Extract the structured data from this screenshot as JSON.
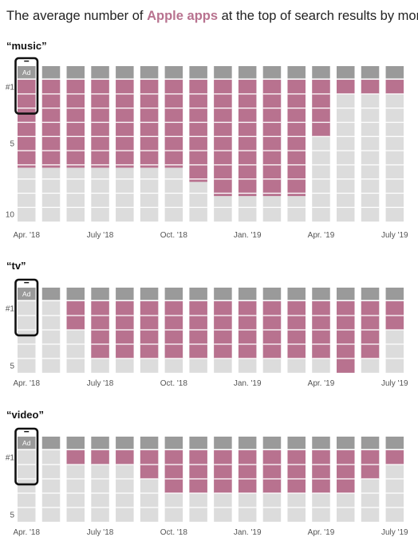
{
  "header": {
    "title_before": "The average number of ",
    "title_highlight": "Apple apps",
    "title_after": " at the top of search results by month"
  },
  "legend": {
    "ad_label": "Ad"
  },
  "colors": {
    "apple": "#b8728f",
    "ad": "#9a9a9a",
    "other": "#dcdcdc",
    "phone": "#111111",
    "highlight_text": "#b8728f"
  },
  "chart_data": [
    {
      "type": "bar",
      "title": "“music”",
      "months": [
        "2018-04",
        "2018-05",
        "2018-06",
        "2018-07",
        "2018-08",
        "2018-09",
        "2018-10",
        "2018-11",
        "2018-12",
        "2019-01",
        "2019-02",
        "2019-03",
        "2019-04",
        "2019-05",
        "2019-06",
        "2019-07"
      ],
      "x_tick_labels": [
        {
          "month_index": 0,
          "label": "Apr. '18"
        },
        {
          "month_index": 3,
          "label": "July '18"
        },
        {
          "month_index": 6,
          "label": "Oct. '18"
        },
        {
          "month_index": 9,
          "label": "Jan. '19"
        },
        {
          "month_index": 12,
          "label": "Apr. '19"
        },
        {
          "month_index": 15,
          "label": "July '19"
        }
      ],
      "y_ticks": [
        {
          "rank": 1,
          "label": "#1"
        },
        {
          "rank": 5,
          "label": "5"
        },
        {
          "rank": 10,
          "label": "10"
        }
      ],
      "slots_shown": 10,
      "ad_slot": true,
      "apple_app_counts": [
        6.2,
        6.2,
        6.2,
        6.2,
        6.2,
        6.2,
        6.2,
        7.2,
        8.2,
        8.2,
        8.2,
        8.2,
        4.0,
        1.0,
        1.0,
        1.0
      ]
    },
    {
      "type": "bar",
      "title": "“tv”",
      "months": [
        "2018-04",
        "2018-05",
        "2018-06",
        "2018-07",
        "2018-08",
        "2018-09",
        "2018-10",
        "2018-11",
        "2018-12",
        "2019-01",
        "2019-02",
        "2019-03",
        "2019-04",
        "2019-05",
        "2019-06",
        "2019-07"
      ],
      "x_tick_labels": [
        {
          "month_index": 0,
          "label": "Apr. '18"
        },
        {
          "month_index": 3,
          "label": "July '18"
        },
        {
          "month_index": 6,
          "label": "Oct. '18"
        },
        {
          "month_index": 9,
          "label": "Jan. '19"
        },
        {
          "month_index": 12,
          "label": "Apr. '19"
        },
        {
          "month_index": 15,
          "label": "July '19"
        }
      ],
      "y_ticks": [
        {
          "rank": 1,
          "label": "#1"
        },
        {
          "rank": 5,
          "label": "5"
        }
      ],
      "slots_shown": 5,
      "ad_slot": true,
      "apple_app_counts": [
        0.0,
        0.0,
        2.0,
        4.0,
        4.0,
        4.0,
        4.0,
        4.0,
        4.0,
        4.0,
        4.0,
        4.0,
        4.0,
        5.0,
        4.0,
        2.0
      ]
    },
    {
      "type": "bar",
      "title": "“video”",
      "months": [
        "2018-04",
        "2018-05",
        "2018-06",
        "2018-07",
        "2018-08",
        "2018-09",
        "2018-10",
        "2018-11",
        "2018-12",
        "2019-01",
        "2019-02",
        "2019-03",
        "2019-04",
        "2019-05",
        "2019-06",
        "2019-07"
      ],
      "x_tick_labels": [
        {
          "month_index": 0,
          "label": "Apr. '18"
        },
        {
          "month_index": 3,
          "label": "July '18"
        },
        {
          "month_index": 6,
          "label": "Oct. '18"
        },
        {
          "month_index": 9,
          "label": "Jan. '19"
        },
        {
          "month_index": 12,
          "label": "Apr. '19"
        },
        {
          "month_index": 15,
          "label": "July '19"
        }
      ],
      "y_ticks": [
        {
          "rank": 1,
          "label": "#1"
        },
        {
          "rank": 5,
          "label": "5"
        }
      ],
      "slots_shown": 5,
      "ad_slot": true,
      "apple_app_counts": [
        0.0,
        0.0,
        1.0,
        1.0,
        1.0,
        2.0,
        3.0,
        3.0,
        3.0,
        3.0,
        3.0,
        3.0,
        3.0,
        3.0,
        2.0,
        1.0
      ]
    }
  ]
}
